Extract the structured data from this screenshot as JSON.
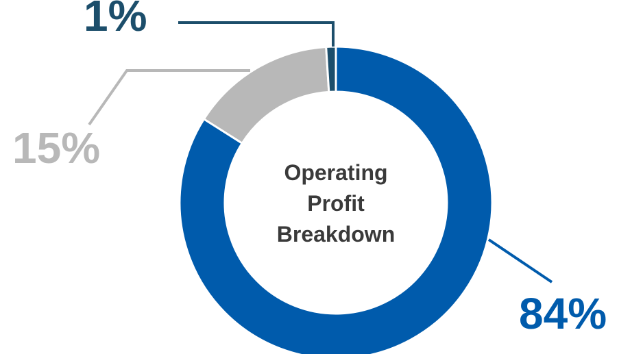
{
  "chart_data": {
    "type": "pie",
    "title": "Operating Profit Breakdown",
    "values": [
      84,
      15,
      1
    ],
    "value_labels": [
      "84%",
      "15%",
      "1%"
    ],
    "colors": [
      "#005bac",
      "#b8b8b8",
      "#1c4e6b"
    ]
  }
}
